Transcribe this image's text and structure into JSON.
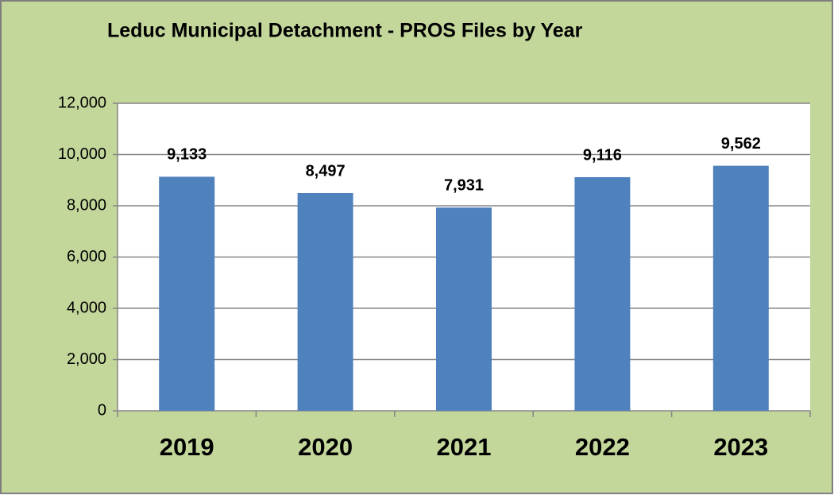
{
  "chart_data": {
    "type": "bar",
    "title": "Leduc Municipal Detachment - PROS Files by Year",
    "categories": [
      "2019",
      "2020",
      "2021",
      "2022",
      "2023"
    ],
    "values": [
      9133,
      8497,
      7931,
      9116,
      9562
    ],
    "value_labels": [
      "9,133",
      "8,497",
      "7,931",
      "9,116",
      "9,562"
    ],
    "color": "#4f81bd",
    "ylim": [
      0,
      12000
    ],
    "yticks": [
      0,
      {
        "value": 2000,
        "label": "2,000"
      },
      {
        "value": 4000,
        "label": "4,000"
      },
      {
        "value": 6000,
        "label": "6,000"
      },
      {
        "value": 8000,
        "label": "8,000"
      },
      {
        "value": 10000,
        "label": "10,000"
      },
      {
        "value": 12000,
        "label": "12,000"
      }
    ],
    "grid": true
  }
}
